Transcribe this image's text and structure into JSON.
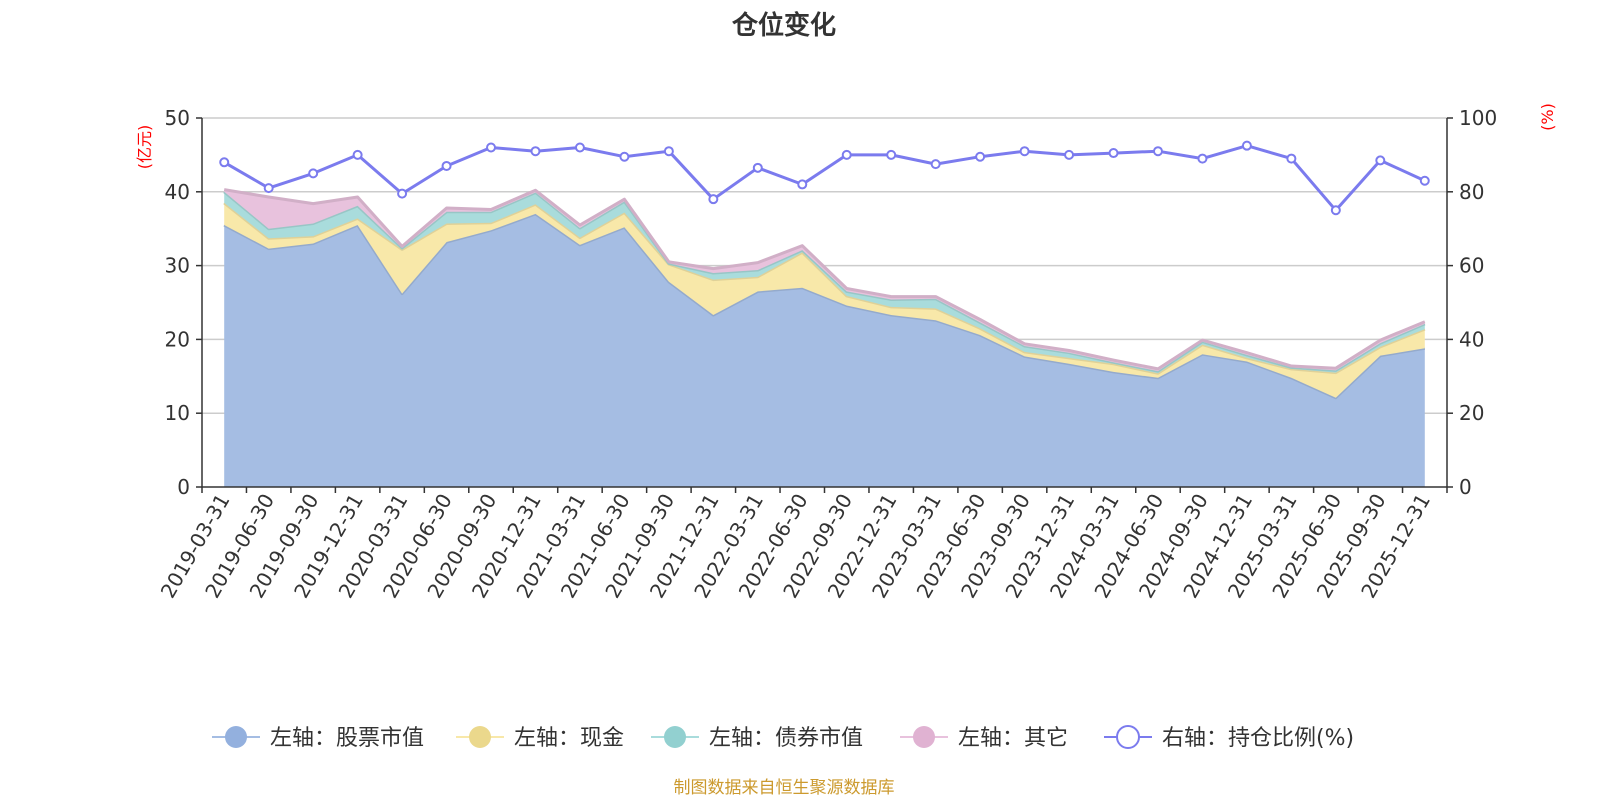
{
  "chart_data": {
    "type": "area",
    "title": "仓位变化",
    "left_unit": "(亿元)",
    "right_unit": "(%)",
    "source": "制图数据来自恒生聚源数据库",
    "x": [
      "2019-03-31",
      "2019-06-30",
      "2019-09-30",
      "2019-12-31",
      "2020-03-31",
      "2020-06-30",
      "2020-09-30",
      "2020-12-31",
      "2021-03-31",
      "2021-06-30",
      "2021-09-30",
      "2021-12-31",
      "2022-03-31",
      "2022-06-30",
      "2022-09-30",
      "2022-12-31",
      "2023-03-31",
      "2023-06-30",
      "2023-09-30",
      "2023-12-31",
      "2024-03-31",
      "2024-06-30",
      "2024-09-30",
      "2024-12-31",
      "2025-03-31",
      "2025-06-30",
      "2025-09-30",
      "2025-12-31"
    ],
    "left_axis": {
      "min": 0,
      "max": 50,
      "ticks": [
        "0",
        "10",
        "20",
        "30",
        "40",
        "50"
      ]
    },
    "right_axis": {
      "min": 0,
      "max": 100,
      "ticks": [
        "0",
        "20",
        "40",
        "60",
        "80",
        "100"
      ]
    },
    "grid": true,
    "legend_position": "bottom",
    "series": [
      {
        "name": "左轴：股票市值",
        "axis": "left",
        "kind": "stacked-area",
        "color": "#a5bde3",
        "values": [
          35.5,
          32.3,
          33.0,
          35.5,
          26.2,
          33.2,
          34.8,
          37.0,
          32.8,
          35.2,
          27.8,
          23.3,
          26.5,
          27.0,
          24.6,
          23.3,
          22.6,
          20.6,
          17.7,
          16.7,
          15.6,
          14.8,
          18.0,
          17.0,
          14.8,
          12.1,
          17.8,
          18.8
        ]
      },
      {
        "name": "左轴：现金",
        "axis": "left",
        "kind": "stacked-area",
        "color": "#f8e8a9",
        "values": [
          3.0,
          1.4,
          1.0,
          0.9,
          6.0,
          2.5,
          1.0,
          1.3,
          1.0,
          2.0,
          2.4,
          4.8,
          2.0,
          4.8,
          1.3,
          1.1,
          1.6,
          0.9,
          0.6,
          0.8,
          1.1,
          0.6,
          1.3,
          0.5,
          1.2,
          3.4,
          1.2,
          2.6
        ]
      },
      {
        "name": "左轴：债券市值",
        "axis": "left",
        "kind": "stacked-area",
        "color": "#a9dcdc",
        "values": [
          1.5,
          1.3,
          1.7,
          1.7,
          0.2,
          1.6,
          1.5,
          1.6,
          1.3,
          1.5,
          0.1,
          0.9,
          0.9,
          0.3,
          0.6,
          1.0,
          1.3,
          0.8,
          0.8,
          0.7,
          0.2,
          0.3,
          0.4,
          0.4,
          0.2,
          0.3,
          0.5,
          0.7
        ]
      },
      {
        "name": "左轴：其它",
        "axis": "left",
        "kind": "stacked-area",
        "color": "#e8c2dd",
        "values": [
          0.3,
          4.3,
          2.7,
          1.2,
          0.2,
          0.5,
          0.3,
          0.3,
          0.4,
          0.3,
          0.2,
          0.6,
          1.0,
          0.6,
          0.4,
          0.4,
          0.3,
          0.4,
          0.3,
          0.3,
          0.3,
          0.3,
          0.2,
          0.3,
          0.2,
          0.3,
          0.4,
          0.3
        ]
      },
      {
        "name": "右轴：持仓比例(%)",
        "axis": "right",
        "kind": "line",
        "color": "#7b7bee",
        "values": [
          88.0,
          81.0,
          85.0,
          90.0,
          79.5,
          87.0,
          92.0,
          91.0,
          92.0,
          89.5,
          91.0,
          78.0,
          86.5,
          82.0,
          90.0,
          90.0,
          87.5,
          89.5,
          91.0,
          90.0,
          90.5,
          91.0,
          89.0,
          92.5,
          89.0,
          75.0,
          88.5,
          83.0
        ]
      }
    ]
  }
}
